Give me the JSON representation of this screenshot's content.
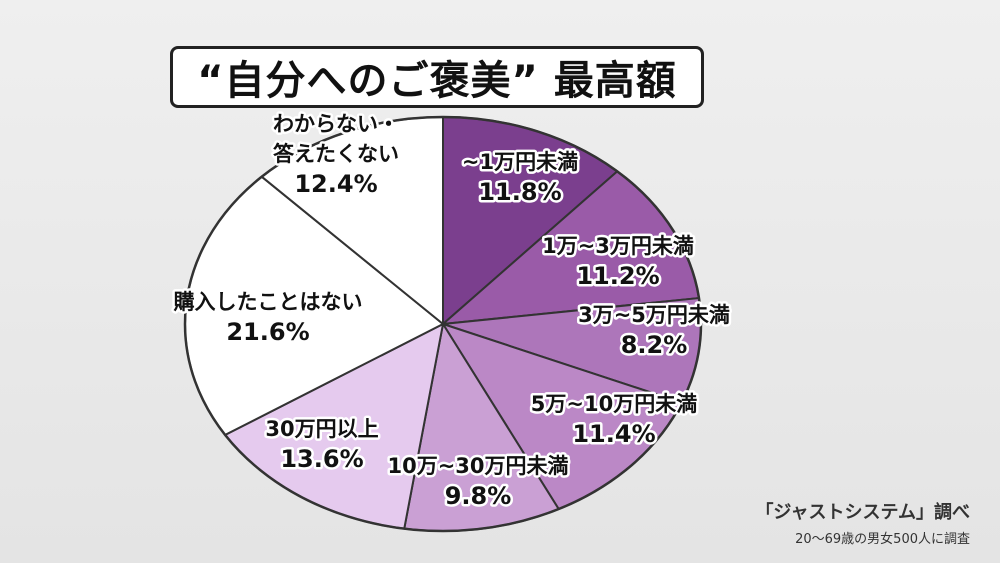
{
  "title": "“自分へのご褒美” 最高額",
  "source": {
    "title": "「ジャストシステム」調べ",
    "note": "20〜69歳の男女500人に調査"
  },
  "chart_data": {
    "type": "pie",
    "title": "“自分へのご褒美” 最高額",
    "unit": "%",
    "start": "12 o'clock, clockwise",
    "categories": [
      "~1万円未満",
      "1万~3万円未満",
      "3万~5万円未満",
      "5万~10万円未満",
      "10万~30万円未満",
      "30万円以上",
      "購入したことはない",
      "わからない・答えたくない"
    ],
    "values": [
      11.8,
      11.2,
      8.2,
      11.4,
      9.8,
      13.6,
      21.6,
      12.4
    ],
    "labels": [
      [
        "~1万円未満",
        "11.8%"
      ],
      [
        "1万~3万円未満",
        "11.2%"
      ],
      [
        "3万~5万円未満",
        "8.2%"
      ],
      [
        "5万~10万円未満",
        "11.4%"
      ],
      [
        "10万~30万円未満",
        "9.8%"
      ],
      [
        "30万円以上",
        "13.6%"
      ],
      [
        "購入したことはない",
        "21.6%"
      ],
      [
        "わからない・",
        "答えたくない",
        "12.4%"
      ]
    ],
    "colors": [
      "#7b3f8e",
      "#9a5ba8",
      "#ad76ba",
      "#bb88c6",
      "#caa0d4",
      "#e5caee",
      "#ffffff",
      "#ffffff"
    ]
  }
}
